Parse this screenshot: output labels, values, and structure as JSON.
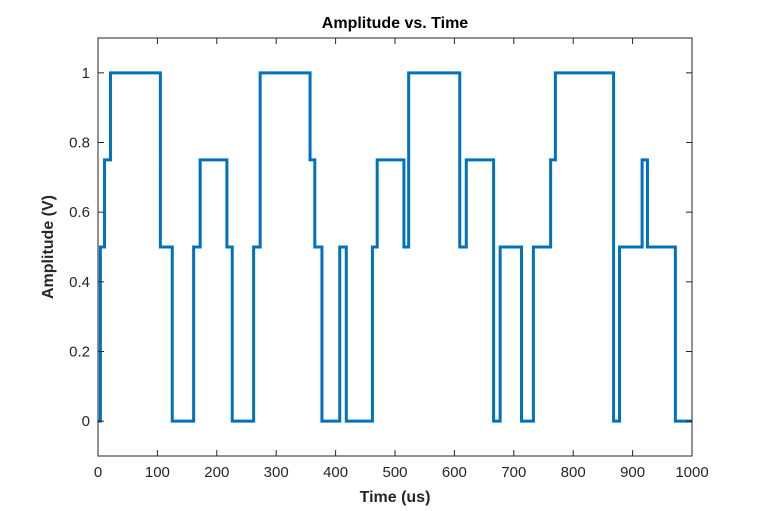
{
  "chart_data": {
    "type": "line",
    "title": "Amplitude vs. Time",
    "xlabel": "Time (us)",
    "ylabel": "Amplitude (V)",
    "xlim": [
      0,
      1000
    ],
    "ylim": [
      -0.1,
      1.1
    ],
    "xticks": [
      0,
      100,
      200,
      300,
      400,
      500,
      600,
      700,
      800,
      900,
      1000
    ],
    "yticks": [
      0,
      0.2,
      0.4,
      0.6,
      0.8,
      1
    ],
    "xtick_labels": [
      "0",
      "100",
      "200",
      "300",
      "400",
      "500",
      "600",
      "700",
      "800",
      "900",
      "1000"
    ],
    "ytick_labels": [
      "0",
      "0.2",
      "0.4",
      "0.6",
      "0.8",
      "1"
    ],
    "grid": false,
    "line_color": "#0072BD",
    "series": [
      {
        "step": "post",
        "x": [
          0,
          4,
          11,
          21,
          105,
          125,
          161,
          172,
          217,
          226,
          262,
          273,
          357,
          365,
          377,
          407,
          418,
          432,
          462,
          470,
          515,
          523,
          531,
          609,
          620,
          666,
          677,
          713,
          733,
          762,
          770,
          784,
          868,
          878,
          916,
          925,
          972,
          980,
          1000
        ],
        "y": [
          0,
          0.5,
          0.75,
          1,
          0.5,
          0,
          0.5,
          0.75,
          0.5,
          0,
          0.5,
          1,
          0.75,
          0.5,
          0,
          0.5,
          0,
          0,
          0.5,
          0.75,
          0.5,
          1,
          1,
          0.5,
          0.75,
          0,
          0.5,
          0,
          0.5,
          0.75,
          1,
          1,
          0,
          0.5,
          0.75,
          0.5,
          0,
          0,
          0
        ]
      }
    ]
  }
}
